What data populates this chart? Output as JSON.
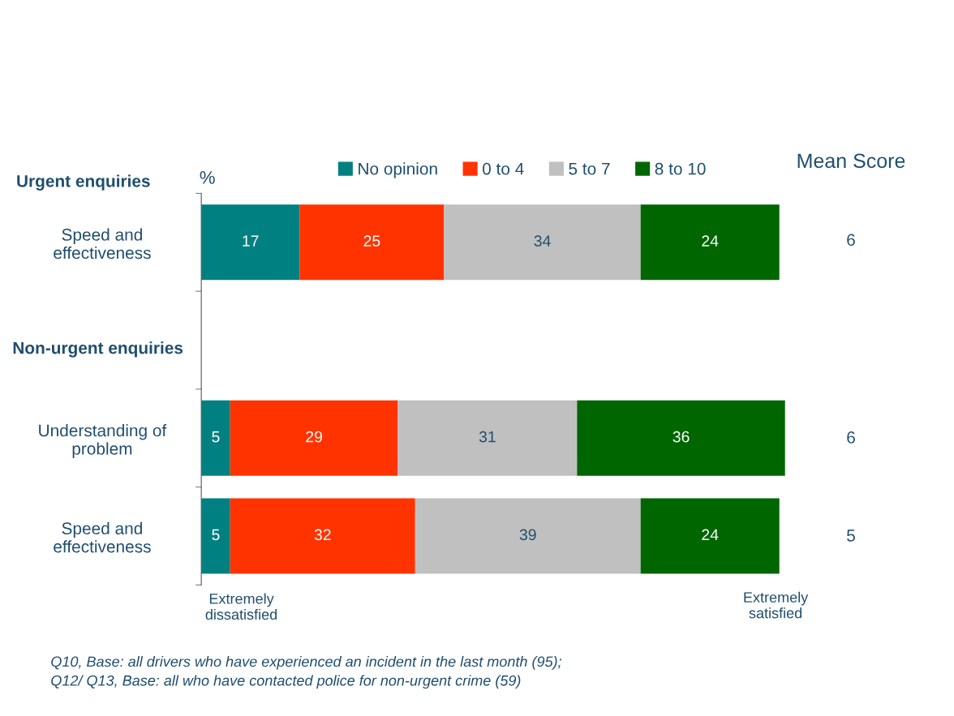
{
  "chart_data": {
    "type": "bar",
    "orientation": "horizontal",
    "stacked": true,
    "data_labels": true,
    "legend": "top",
    "grid": false,
    "tick_labels": "y",
    "categories": [
      "Speed and\neffectiveness",
      null,
      "Understanding of\nproblem",
      "Speed and\neffectiveness"
    ],
    "series": [
      {
        "name": "No opinion",
        "color": "#008080",
        "values": [
          17,
          null,
          5,
          5
        ]
      },
      {
        "name": "0 to 4",
        "color": "#ff3300",
        "values": [
          25,
          null,
          29,
          32
        ]
      },
      {
        "name": "5 to 7",
        "color": "#c0c0c0",
        "values": [
          34,
          null,
          31,
          39
        ]
      },
      {
        "name": "8 to 10",
        "color": "#006600",
        "values": [
          24,
          null,
          36,
          24
        ]
      }
    ],
    "annotations": [
      "Urgent enquiries",
      "Non-urgent enquiries",
      "%",
      "Mean Score",
      "6",
      "6",
      "5",
      "Extremely\ndissatisfied",
      "Extremely\nsatisfied",
      "Q10, Base: all drivers who have experienced an incident in the last month (95);\nQ12/ Q13, Base: all who have contacted police for non-urgent crime (59)"
    ]
  }
}
